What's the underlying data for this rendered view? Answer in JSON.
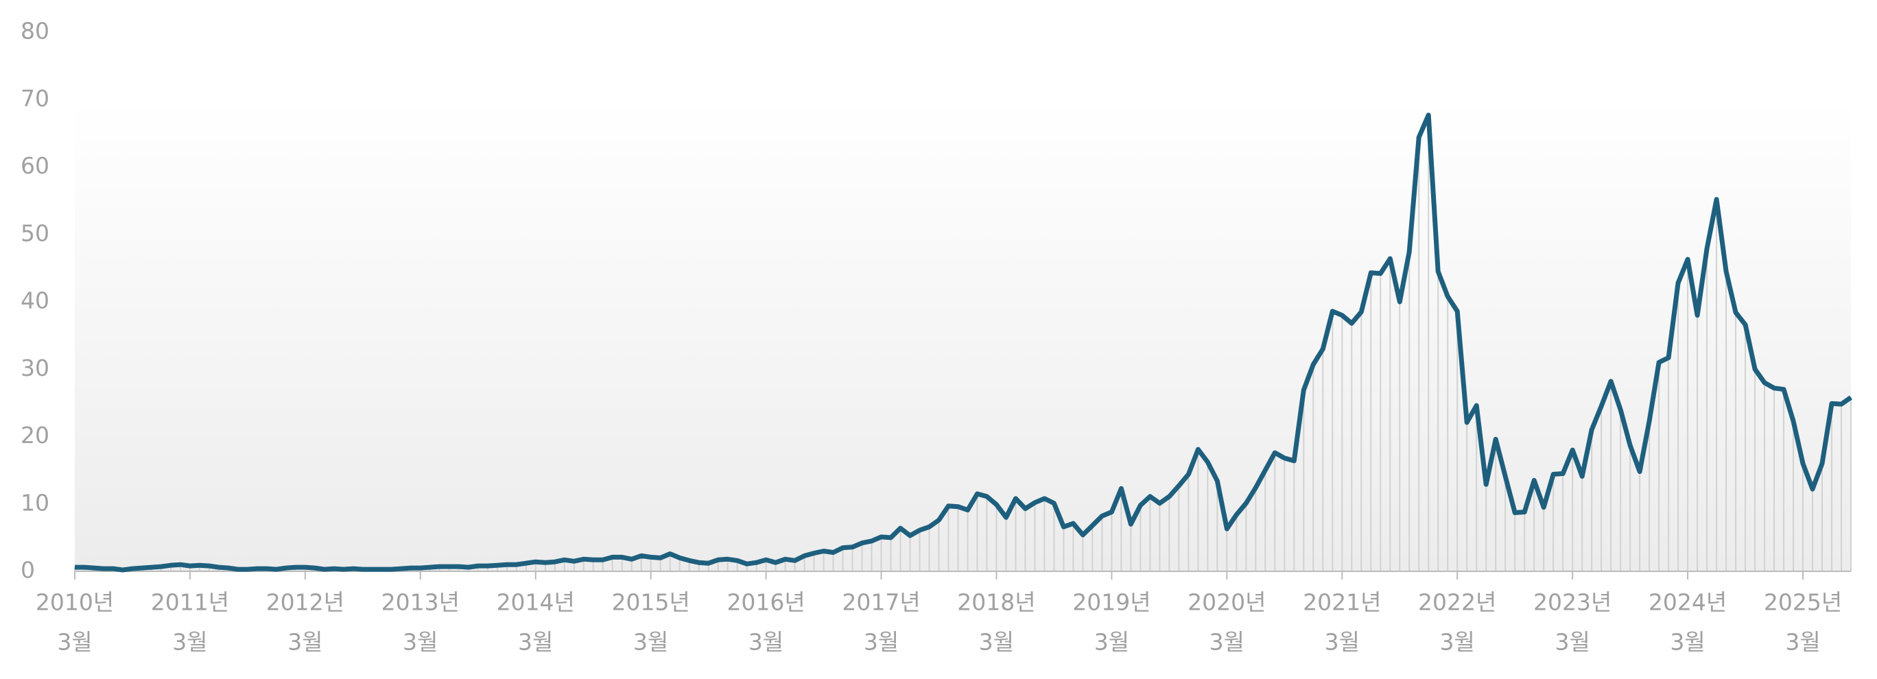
{
  "chart_data": {
    "type": "line",
    "x": [
      "2010-03",
      "2010-04",
      "2010-05",
      "2010-06",
      "2010-07",
      "2010-08",
      "2010-09",
      "2010-10",
      "2010-11",
      "2010-12",
      "2011-01",
      "2011-02",
      "2011-03",
      "2011-04",
      "2011-05",
      "2011-06",
      "2011-07",
      "2011-08",
      "2011-09",
      "2011-10",
      "2011-11",
      "2011-12",
      "2012-01",
      "2012-02",
      "2012-03",
      "2012-04",
      "2012-05",
      "2012-06",
      "2012-07",
      "2012-08",
      "2012-09",
      "2012-10",
      "2012-11",
      "2012-12",
      "2013-01",
      "2013-02",
      "2013-03",
      "2013-04",
      "2013-05",
      "2013-06",
      "2013-07",
      "2013-08",
      "2013-09",
      "2013-10",
      "2013-11",
      "2013-12",
      "2014-01",
      "2014-02",
      "2014-03",
      "2014-04",
      "2014-05",
      "2014-06",
      "2014-07",
      "2014-08",
      "2014-09",
      "2014-10",
      "2014-11",
      "2014-12",
      "2015-01",
      "2015-02",
      "2015-03",
      "2015-04",
      "2015-05",
      "2015-06",
      "2015-07",
      "2015-08",
      "2015-09",
      "2015-10",
      "2015-11",
      "2015-12",
      "2016-01",
      "2016-02",
      "2016-03",
      "2016-04",
      "2016-05",
      "2016-06",
      "2016-07",
      "2016-08",
      "2016-09",
      "2016-10",
      "2016-11",
      "2016-12",
      "2017-01",
      "2017-02",
      "2017-03",
      "2017-04",
      "2017-05",
      "2017-06",
      "2017-07",
      "2017-08",
      "2017-09",
      "2017-10",
      "2017-11",
      "2017-12",
      "2018-01",
      "2018-02",
      "2018-03",
      "2018-04",
      "2018-05",
      "2018-06",
      "2018-07",
      "2018-08",
      "2018-09",
      "2018-10",
      "2018-11",
      "2018-12",
      "2019-01",
      "2019-02",
      "2019-03",
      "2019-04",
      "2019-05",
      "2019-06",
      "2019-07",
      "2019-08",
      "2019-09",
      "2019-10",
      "2019-11",
      "2019-12",
      "2020-01",
      "2020-02",
      "2020-03",
      "2020-04",
      "2020-05",
      "2020-06",
      "2020-07",
      "2020-08",
      "2020-09",
      "2020-10",
      "2020-11",
      "2020-12",
      "2021-01",
      "2021-02",
      "2021-03",
      "2021-04",
      "2021-05",
      "2021-06",
      "2021-07",
      "2021-08",
      "2021-09",
      "2021-10",
      "2021-11",
      "2021-12",
      "2022-01",
      "2022-02",
      "2022-03",
      "2022-04",
      "2022-05",
      "2022-06",
      "2022-07",
      "2022-08",
      "2022-09",
      "2022-10",
      "2022-11",
      "2022-12",
      "2023-01",
      "2023-02",
      "2023-03",
      "2023-04",
      "2023-05",
      "2023-06",
      "2023-07",
      "2023-08",
      "2023-09",
      "2023-10",
      "2023-11",
      "2023-12",
      "2024-01",
      "2024-02",
      "2024-03",
      "2024-04",
      "2024-05",
      "2024-06",
      "2024-07",
      "2024-08",
      "2024-09",
      "2024-10",
      "2024-11",
      "2024-12",
      "2025-01",
      "2025-02",
      "2025-03",
      "2025-04",
      "2025-05",
      "2025-06",
      "2025-07",
      "2025-08"
    ],
    "values": [
      0.6,
      0.6,
      0.5,
      0.4,
      0.4,
      0.2,
      0.4,
      0.5,
      0.6,
      0.7,
      0.9,
      1.0,
      0.8,
      0.9,
      0.8,
      0.6,
      0.5,
      0.3,
      0.3,
      0.4,
      0.4,
      0.3,
      0.5,
      0.6,
      0.6,
      0.5,
      0.3,
      0.4,
      0.3,
      0.4,
      0.3,
      0.3,
      0.3,
      0.3,
      0.4,
      0.5,
      0.5,
      0.6,
      0.7,
      0.7,
      0.7,
      0.6,
      0.8,
      0.8,
      0.9,
      1.0,
      1.0,
      1.2,
      1.4,
      1.3,
      1.4,
      1.7,
      1.5,
      1.8,
      1.7,
      1.7,
      2.1,
      2.1,
      1.8,
      2.3,
      2.1,
      2.0,
      2.6,
      2.0,
      1.6,
      1.3,
      1.2,
      1.7,
      1.8,
      1.6,
      1.1,
      1.3,
      1.7,
      1.3,
      1.8,
      1.6,
      2.3,
      2.7,
      3.0,
      2.8,
      3.5,
      3.6,
      4.2,
      4.5,
      5.1,
      5.0,
      6.4,
      5.3,
      6.1,
      6.6,
      7.6,
      9.7,
      9.6,
      9.1,
      11.5,
      11.1,
      9.9,
      8.0,
      10.8,
      9.3,
      10.2,
      10.8,
      10.1,
      6.6,
      7.1,
      5.4,
      6.8,
      8.2,
      8.8,
      12.3,
      7.0,
      9.8,
      11.1,
      10.1,
      11.1,
      12.7,
      14.4,
      18.1,
      16.2,
      13.4,
      6.3,
      8.4,
      10.1,
      12.4,
      15.0,
      17.6,
      16.8,
      16.4,
      26.9,
      30.7,
      33.0,
      38.6,
      38.0,
      36.8,
      38.5,
      44.3,
      44.2,
      46.4,
      40.0,
      47.4,
      64.4,
      67.7,
      44.5,
      40.8,
      38.6,
      22.1,
      24.6,
      12.9,
      19.6,
      14.1,
      8.7,
      8.8,
      13.5,
      9.5,
      14.4,
      14.5,
      18.0,
      14.1,
      21.0,
      24.5,
      28.2,
      24.0,
      18.7,
      14.8,
      22.3,
      31.0,
      31.7,
      42.8,
      46.3,
      38.0,
      47.9,
      55.2,
      44.5,
      38.4,
      36.6,
      30.0,
      28.0,
      27.2,
      27.0,
      22.3,
      16.0,
      12.2,
      16.0,
      24.9,
      24.8,
      25.8
    ],
    "color": "#1e5f7e",
    "xlim": [
      "2010-03",
      "2025-08"
    ],
    "xticks": [
      {
        "value": "2010-03",
        "label": [
          "2010년",
          "3월"
        ]
      },
      {
        "value": "2011-03",
        "label": [
          "2011년",
          "3월"
        ]
      },
      {
        "value": "2012-03",
        "label": [
          "2012년",
          "3월"
        ]
      },
      {
        "value": "2013-03",
        "label": [
          "2013년",
          "3월"
        ]
      },
      {
        "value": "2014-03",
        "label": [
          "2014년",
          "3월"
        ]
      },
      {
        "value": "2015-03",
        "label": [
          "2015년",
          "3월"
        ]
      },
      {
        "value": "2016-03",
        "label": [
          "2016년",
          "3월"
        ]
      },
      {
        "value": "2017-03",
        "label": [
          "2017년",
          "3월"
        ]
      },
      {
        "value": "2018-03",
        "label": [
          "2018년",
          "3월"
        ]
      },
      {
        "value": "2019-03",
        "label": [
          "2019년",
          "3월"
        ]
      },
      {
        "value": "2020-03",
        "label": [
          "2020년",
          "3월"
        ]
      },
      {
        "value": "2021-03",
        "label": [
          "2021년",
          "3월"
        ]
      },
      {
        "value": "2022-03",
        "label": [
          "2022년",
          "3월"
        ]
      },
      {
        "value": "2023-03",
        "label": [
          "2023년",
          "3월"
        ]
      },
      {
        "value": "2024-03",
        "label": [
          "2024년",
          "3월"
        ]
      },
      {
        "value": "2025-03",
        "label": [
          "2025년",
          "3월"
        ]
      }
    ],
    "ylim": [
      0,
      80
    ],
    "yticks": [
      0,
      10,
      20,
      30,
      40,
      50,
      60,
      70,
      80
    ],
    "grid": false
  }
}
